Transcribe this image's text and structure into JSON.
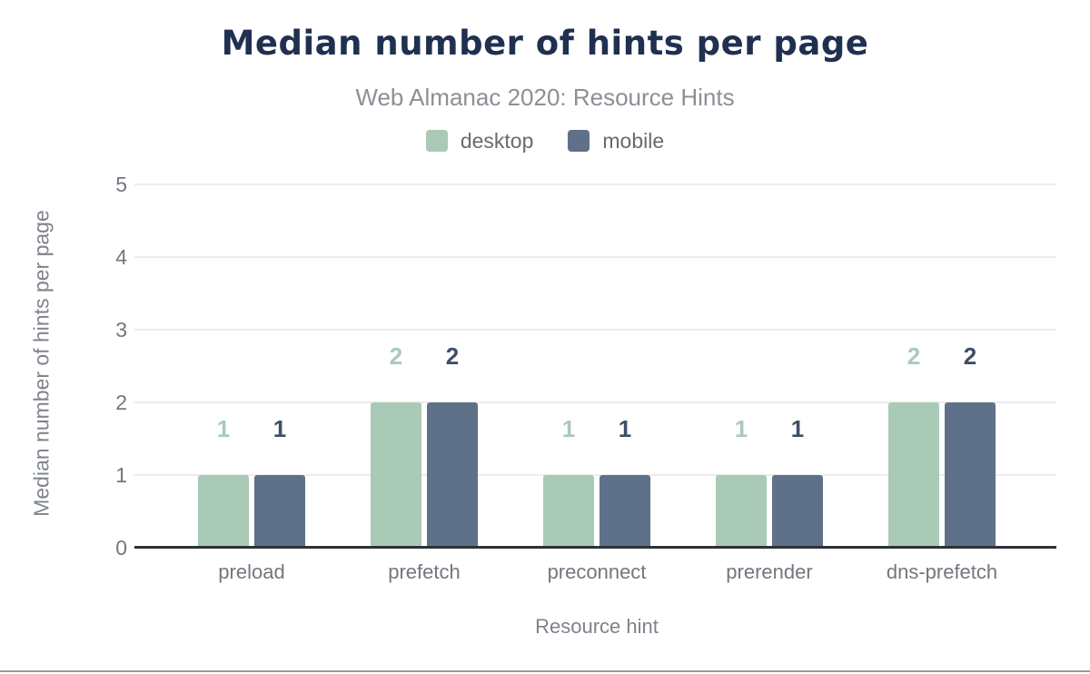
{
  "chart_data": {
    "type": "bar",
    "title": "Median number of hints per page",
    "subtitle": "Web Almanac 2020: Resource Hints",
    "categories": [
      "preload",
      "prefetch",
      "preconnect",
      "prerender",
      "dns-prefetch"
    ],
    "series": [
      {
        "name": "desktop",
        "color": "#a9cab7",
        "label_color": "#a9cab7",
        "values": [
          1,
          2,
          1,
          1,
          2
        ]
      },
      {
        "name": "mobile",
        "color": "#5f7089",
        "label_color": "#3f4e68",
        "values": [
          1,
          2,
          1,
          1,
          2
        ]
      }
    ],
    "xlabel": "Resource hint",
    "ylabel": "Median number of hints per page",
    "ylim": [
      0,
      5
    ],
    "ytick_step": 1,
    "y_tick_labels": [
      "0",
      "1",
      "2",
      "3",
      "4",
      "5"
    ],
    "grid": true,
    "bar_labels": true,
    "legend_position": "top",
    "colors": {
      "title": "#1f3050",
      "subtitle": "#8b9096",
      "axis_text": "#72777f",
      "axis_title": "#7e838b",
      "gridline": "#ededed",
      "baseline": "#2f3136"
    }
  }
}
